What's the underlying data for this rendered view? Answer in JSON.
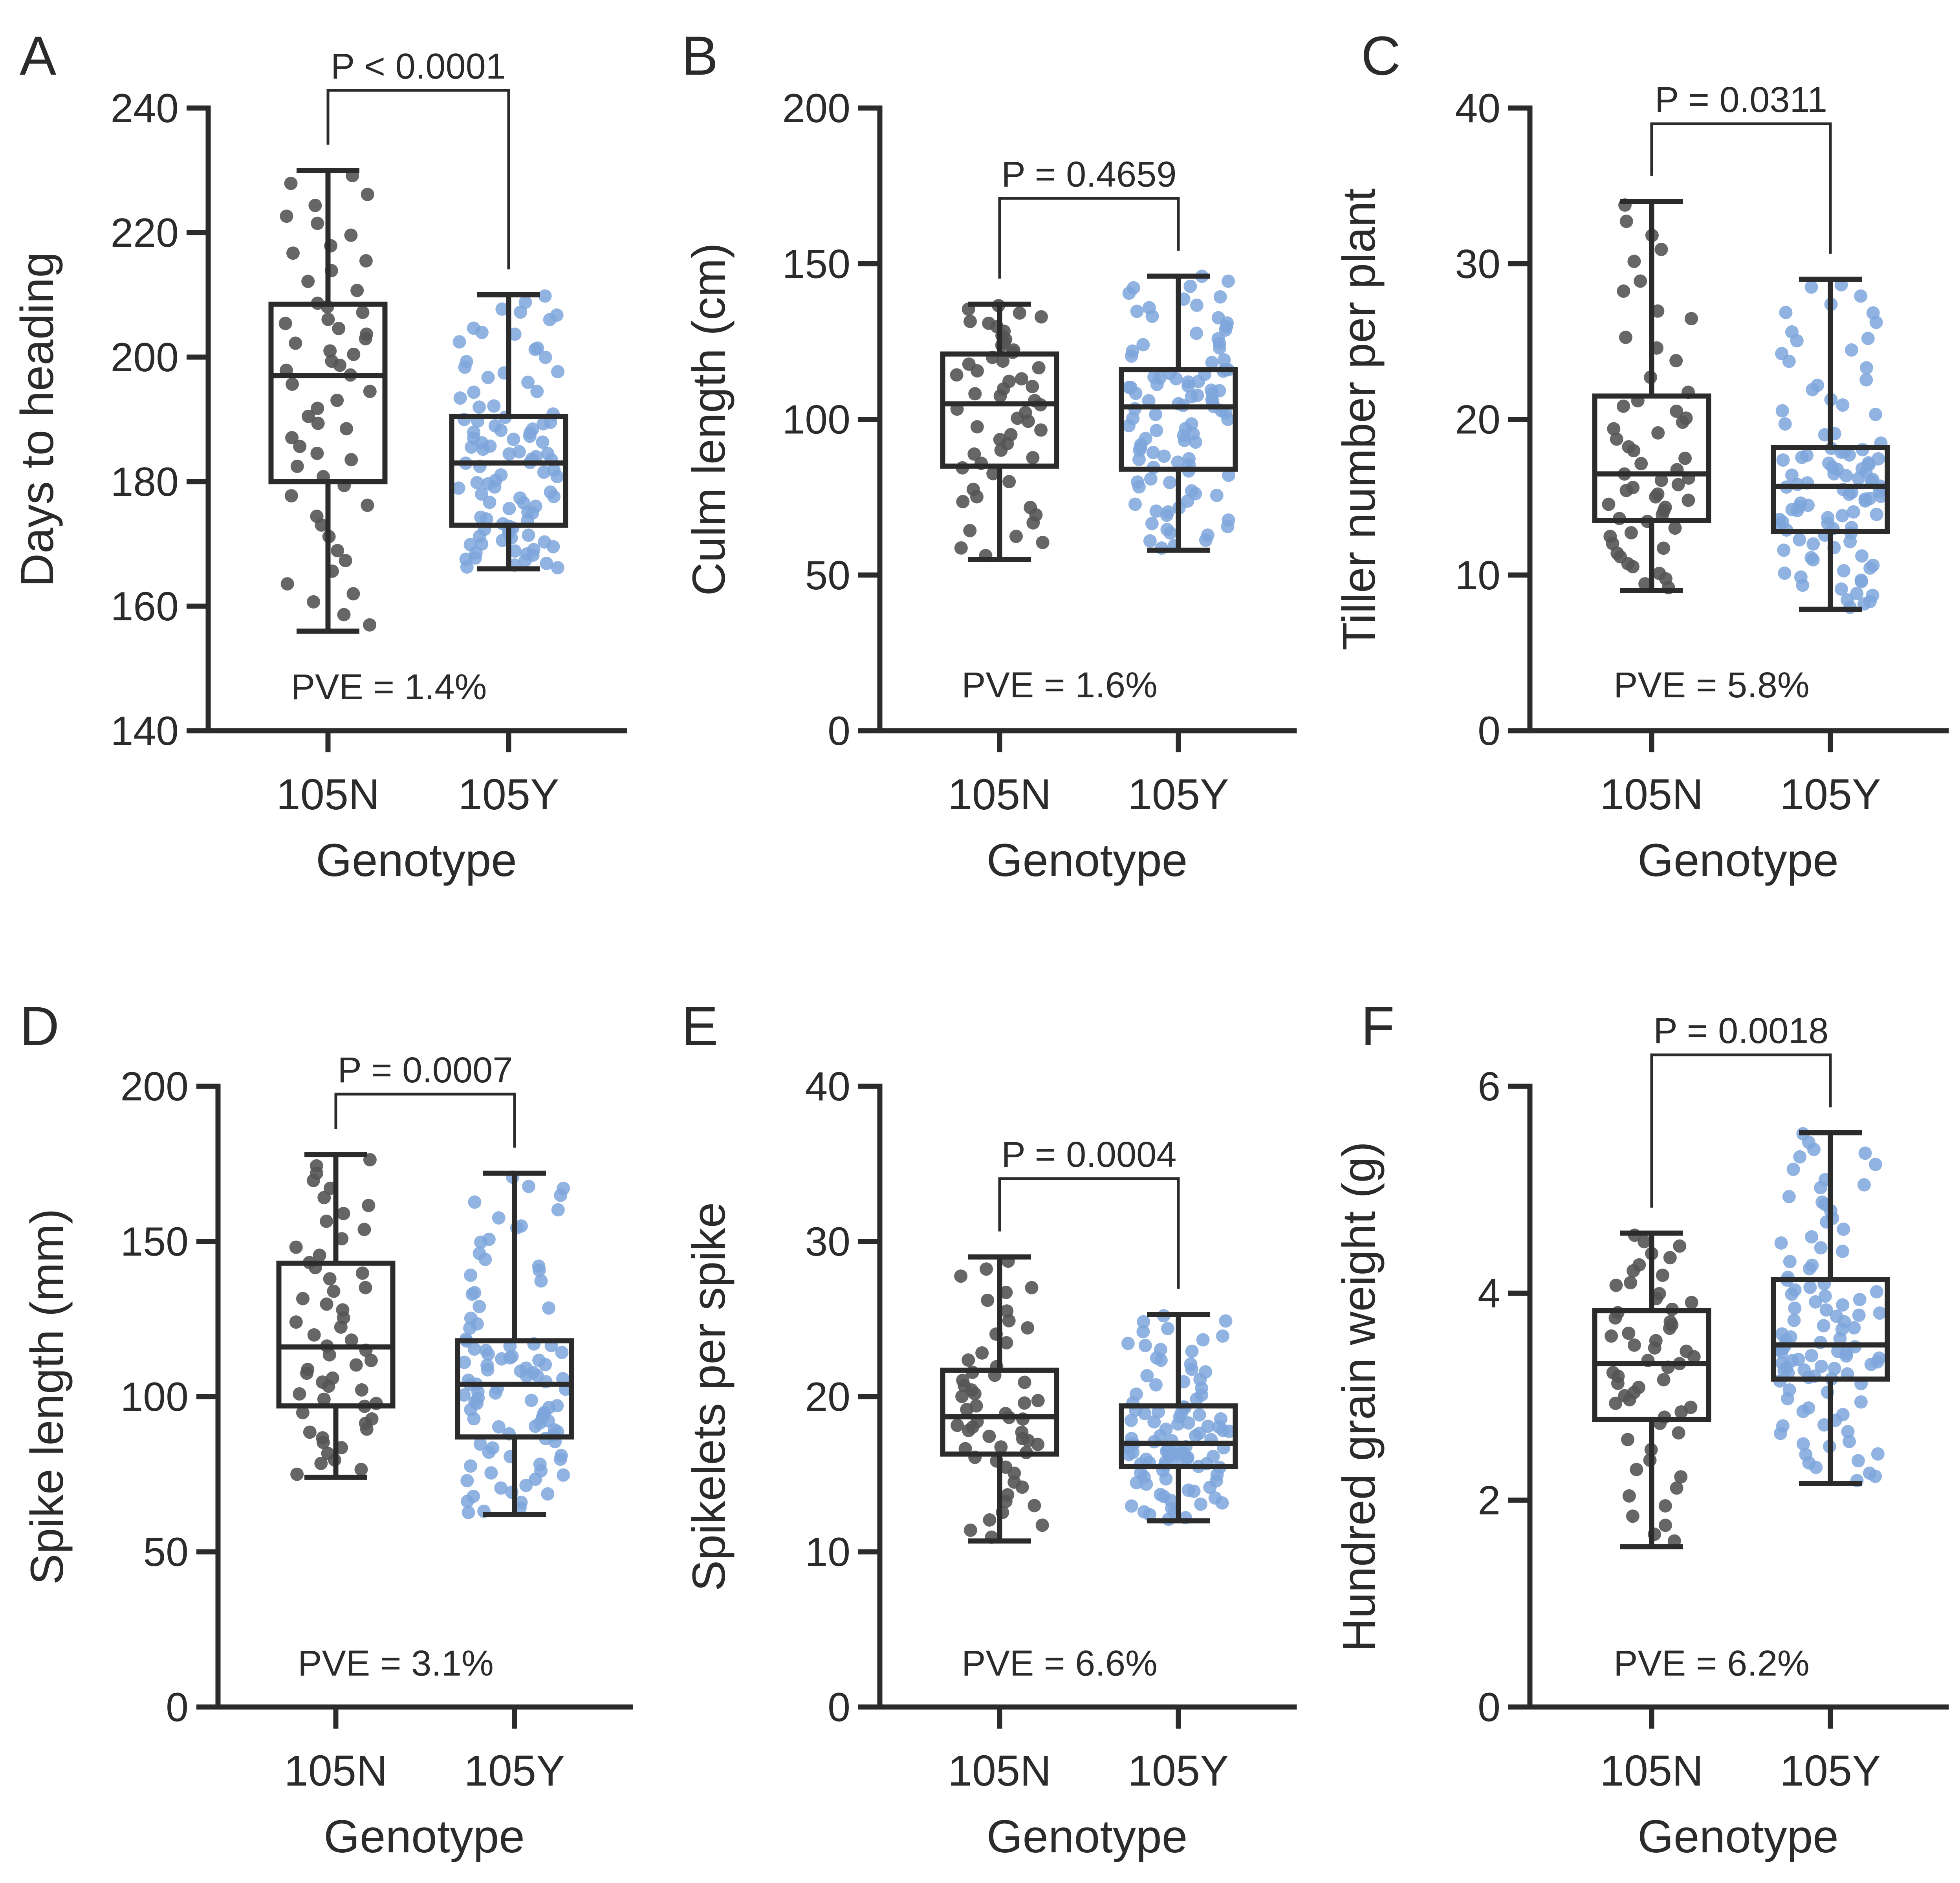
{
  "figure": {
    "colors": {
      "105N": "#555555",
      "105Y": "#7ea6dc",
      "axis": "#2b2b2b"
    }
  },
  "chart_data": [
    {
      "type": "box",
      "panel": "A",
      "ylabel": "Days to heading",
      "xlabel": "Genotype",
      "ylim": [
        140,
        240
      ],
      "yticks": [
        140,
        160,
        180,
        200,
        220,
        240
      ],
      "categories": [
        "105N",
        "105Y"
      ],
      "series": [
        {
          "name": "105N",
          "min": 156,
          "q1": 180,
          "median": 197,
          "q3": 208.5,
          "max": 230,
          "n": 55
        },
        {
          "name": "105Y",
          "min": 166,
          "q1": 173,
          "median": 183,
          "q3": 190.5,
          "max": 210,
          "n": 100
        }
      ],
      "pvalue": "P < 0.0001",
      "pve": "PVE = 1.4%"
    },
    {
      "type": "box",
      "panel": "B",
      "ylabel": "Culm length (cm)",
      "xlabel": "Genotype",
      "ylim": [
        0,
        200
      ],
      "yticks": [
        0,
        50,
        100,
        150,
        200
      ],
      "categories": [
        "105N",
        "105Y"
      ],
      "series": [
        {
          "name": "105N",
          "min": 55,
          "q1": 85,
          "median": 105,
          "q3": 121,
          "max": 137,
          "n": 55
        },
        {
          "name": "105Y",
          "min": 58,
          "q1": 84,
          "median": 104,
          "q3": 116,
          "max": 146,
          "n": 100
        }
      ],
      "pvalue": "P = 0.4659",
      "pve": "PVE = 1.6%"
    },
    {
      "type": "box",
      "panel": "C",
      "ylabel": "Tiller number per plant",
      "xlabel": "Genotype",
      "ylim": [
        0,
        40
      ],
      "yticks": [
        0,
        10,
        20,
        30,
        40
      ],
      "categories": [
        "105N",
        "105Y"
      ],
      "series": [
        {
          "name": "105N",
          "min": 9,
          "q1": 13.5,
          "median": 16.5,
          "q3": 21.5,
          "max": 34,
          "n": 55
        },
        {
          "name": "105Y",
          "min": 7.8,
          "q1": 12.8,
          "median": 15.7,
          "q3": 18.2,
          "max": 29,
          "n": 100
        }
      ],
      "pvalue": "P = 0.0311",
      "pve": "PVE = 5.8%"
    },
    {
      "type": "box",
      "panel": "D",
      "ylabel": "Spike length (mm)",
      "xlabel": "Genotype",
      "ylim": [
        0,
        200
      ],
      "yticks": [
        0,
        50,
        100,
        150,
        200
      ],
      "categories": [
        "105N",
        "105Y"
      ],
      "series": [
        {
          "name": "105N",
          "min": 74,
          "q1": 97,
          "median": 116,
          "q3": 143,
          "max": 178,
          "n": 55
        },
        {
          "name": "105Y",
          "min": 62,
          "q1": 87,
          "median": 104,
          "q3": 118,
          "max": 172,
          "n": 100
        }
      ],
      "pvalue": "P = 0.0007",
      "pve": "PVE = 3.1%"
    },
    {
      "type": "box",
      "panel": "E",
      "ylabel": "Spikelets per spike",
      "xlabel": "Genotype",
      "ylim": [
        0,
        40
      ],
      "yticks": [
        0,
        10,
        20,
        30,
        40
      ],
      "categories": [
        "105N",
        "105Y"
      ],
      "series": [
        {
          "name": "105N",
          "min": 10.7,
          "q1": 16.3,
          "median": 18.7,
          "q3": 21.7,
          "max": 29,
          "n": 55
        },
        {
          "name": "105Y",
          "min": 12,
          "q1": 15.5,
          "median": 17,
          "q3": 19.4,
          "max": 25.3,
          "n": 100
        }
      ],
      "pvalue": "P = 0.0004",
      "pve": "PVE = 6.6%"
    },
    {
      "type": "box",
      "panel": "F",
      "ylabel": "Hundred grain weight (g)",
      "xlabel": "Genotype",
      "ylim": [
        0,
        6
      ],
      "yticks": [
        0,
        2,
        4,
        6
      ],
      "categories": [
        "105N",
        "105Y"
      ],
      "series": [
        {
          "name": "105N",
          "min": 1.55,
          "q1": 2.78,
          "median": 3.32,
          "q3": 3.83,
          "max": 4.58,
          "n": 55
        },
        {
          "name": "105Y",
          "min": 2.16,
          "q1": 3.17,
          "median": 3.5,
          "q3": 4.13,
          "max": 5.55,
          "n": 100
        }
      ],
      "pvalue": "P = 0.0018",
      "pve": "PVE = 6.2%"
    }
  ]
}
